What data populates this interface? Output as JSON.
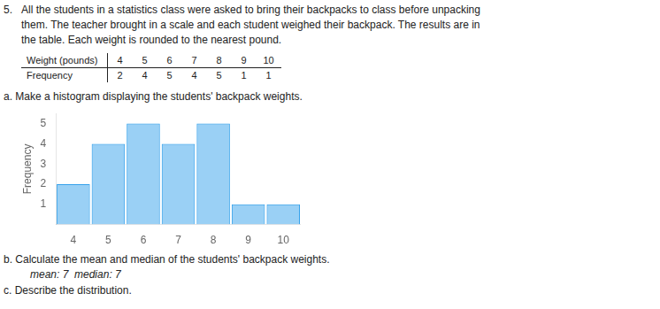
{
  "chart_data": {
    "type": "bar",
    "x": [
      4,
      5,
      6,
      7,
      8,
      9,
      10
    ],
    "values": [
      2,
      4,
      5,
      4,
      5,
      1,
      1
    ],
    "xlim": [
      3.5,
      10.5
    ],
    "xticks": [
      4,
      5,
      6,
      7,
      8,
      9,
      10
    ],
    "ylim": [
      0,
      5.5
    ],
    "yticks": [
      1,
      2,
      3,
      4,
      5
    ],
    "ylabel": "Frequency",
    "grid": false,
    "annotations": [
      "5.",
      "All the students in a statistics class were asked to bring their backpacks to class before unpacking",
      "them. The teacher brought in a scale and each student weighed their backpack. The results are in",
      "the table. Each weight is rounded to the nearest pound.",
      "Weight (pounds)",
      "Frequency",
      "a. Make a histogram displaying the students' backpack weights.",
      "b. Calculate the mean and median of the students' backpack weights.",
      "   mean: 7  median: 7",
      "c. Describe the distribution."
    ]
  }
}
